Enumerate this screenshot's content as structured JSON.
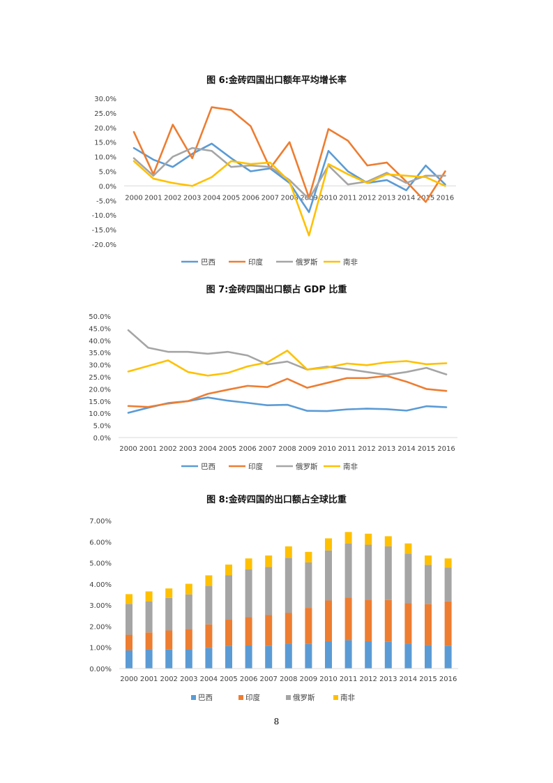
{
  "colors": {
    "巴西": "#5b9bd5",
    "印度": "#ed7d31",
    "俄罗斯": "#a5a5a5",
    "南非": "#ffc000"
  },
  "page_number": "8",
  "chart_data": [
    {
      "type": "line",
      "title": "图 6:金砖四国出口额年平均增长率",
      "categories": [
        "2000",
        "2001",
        "2002",
        "2003",
        "2004",
        "2005",
        "2006",
        "2007",
        "2008",
        "2009",
        "2010",
        "2011",
        "2012",
        "2013",
        "2014",
        "2015",
        "2016"
      ],
      "y_ticks": [
        "30.0%",
        "25.0%",
        "20.0%",
        "15.0%",
        "10.0%",
        "5.0%",
        "0.0%",
        "-5.0%",
        "-10.0%",
        "-15.0%",
        "-20.0%"
      ],
      "ylim": [
        -20,
        30
      ],
      "unit": "%",
      "legend_position": "bottom",
      "grid": false,
      "series": [
        {
          "name": "巴西",
          "values": [
            13.0,
            9.0,
            6.5,
            11.0,
            14.5,
            9.5,
            5.0,
            6.0,
            1.0,
            -9.0,
            12.0,
            5.0,
            1.0,
            2.0,
            -1.5,
            7.0,
            0.5
          ]
        },
        {
          "name": "印度",
          "values": [
            18.5,
            4.0,
            21.0,
            9.5,
            27.0,
            26.0,
            20.5,
            6.0,
            15.0,
            -4.0,
            19.5,
            15.5,
            7.0,
            8.0,
            1.5,
            -5.5,
            5.0
          ]
        },
        {
          "name": "俄罗斯",
          "values": [
            9.5,
            3.5,
            10.0,
            13.0,
            12.0,
            6.5,
            7.0,
            6.5,
            2.0,
            -4.5,
            7.0,
            0.5,
            1.5,
            4.5,
            1.0,
            3.5,
            3.5
          ]
        },
        {
          "name": "南非",
          "values": [
            8.5,
            2.5,
            1.0,
            0.0,
            3.0,
            8.5,
            7.5,
            8.0,
            1.5,
            -17.0,
            7.5,
            4.0,
            1.0,
            4.0,
            3.5,
            3.0,
            0.0
          ]
        }
      ]
    },
    {
      "type": "line",
      "title": "图 7:金砖四国出口额占 GDP 比重",
      "categories": [
        "2000",
        "2001",
        "2002",
        "2003",
        "2004",
        "2005",
        "2006",
        "2007",
        "2008",
        "2009",
        "2010",
        "2011",
        "2012",
        "2013",
        "2014",
        "2015",
        "2016"
      ],
      "y_ticks": [
        "50.0%",
        "45.0%",
        "40.0%",
        "35.0%",
        "30.0%",
        "25.0%",
        "20.0%",
        "15.0%",
        "10.0%",
        "5.0%",
        "0.0%"
      ],
      "ylim": [
        0,
        50
      ],
      "unit": "%",
      "legend_position": "bottom",
      "grid": false,
      "series": [
        {
          "name": "巴西",
          "values": [
            10.2,
            12.3,
            14.2,
            15.0,
            16.5,
            15.2,
            14.3,
            13.3,
            13.5,
            11.0,
            10.9,
            11.6,
            11.9,
            11.7,
            11.1,
            12.9,
            12.5
          ]
        },
        {
          "name": "印度",
          "values": [
            13.0,
            12.6,
            14.0,
            15.0,
            18.0,
            19.7,
            21.3,
            20.8,
            24.2,
            20.5,
            22.5,
            24.5,
            24.5,
            25.4,
            23.0,
            20.0,
            19.2
          ]
        },
        {
          "name": "俄罗斯",
          "values": [
            44.2,
            37.0,
            35.3,
            35.3,
            34.5,
            35.3,
            33.8,
            30.1,
            31.3,
            28.0,
            29.2,
            28.2,
            27.0,
            25.8,
            27.0,
            28.7,
            26.0
          ]
        },
        {
          "name": "南非",
          "values": [
            27.2,
            29.5,
            31.8,
            27.0,
            25.5,
            26.6,
            29.3,
            31.0,
            35.8,
            28.0,
            28.8,
            30.5,
            29.8,
            31.0,
            31.5,
            30.2,
            30.6
          ]
        }
      ]
    },
    {
      "type": "bar",
      "stacked": true,
      "title": "图 8:金砖四国的出口额占全球比重",
      "categories": [
        "2000",
        "2001",
        "2002",
        "2003",
        "2004",
        "2005",
        "2006",
        "2007",
        "2008",
        "2009",
        "2010",
        "2011",
        "2012",
        "2013",
        "2014",
        "2015",
        "2016"
      ],
      "y_ticks": [
        "7.00%",
        "6.00%",
        "5.00%",
        "4.00%",
        "3.00%",
        "2.00%",
        "1.00%",
        "0.00%"
      ],
      "ylim": [
        0,
        7
      ],
      "unit": "%",
      "legend_position": "bottom",
      "grid": false,
      "series": [
        {
          "name": "巴西",
          "values": [
            0.86,
            0.92,
            0.9,
            0.91,
            0.98,
            1.07,
            1.09,
            1.08,
            1.17,
            1.16,
            1.29,
            1.34,
            1.29,
            1.26,
            1.17,
            1.11,
            1.08
          ]
        },
        {
          "name": "印度",
          "values": [
            0.74,
            0.79,
            0.9,
            0.96,
            1.11,
            1.24,
            1.35,
            1.46,
            1.47,
            1.71,
            1.93,
            2.01,
            1.96,
            1.98,
            1.93,
            1.94,
            2.1
          ]
        },
        {
          "name": "俄罗斯",
          "values": [
            1.46,
            1.46,
            1.54,
            1.64,
            1.82,
            2.11,
            2.25,
            2.27,
            2.6,
            2.15,
            2.37,
            2.56,
            2.61,
            2.54,
            2.34,
            1.86,
            1.59
          ]
        },
        {
          "name": "南非",
          "values": [
            0.46,
            0.48,
            0.45,
            0.5,
            0.5,
            0.5,
            0.52,
            0.54,
            0.54,
            0.5,
            0.57,
            0.55,
            0.52,
            0.48,
            0.48,
            0.44,
            0.44
          ]
        }
      ]
    }
  ]
}
